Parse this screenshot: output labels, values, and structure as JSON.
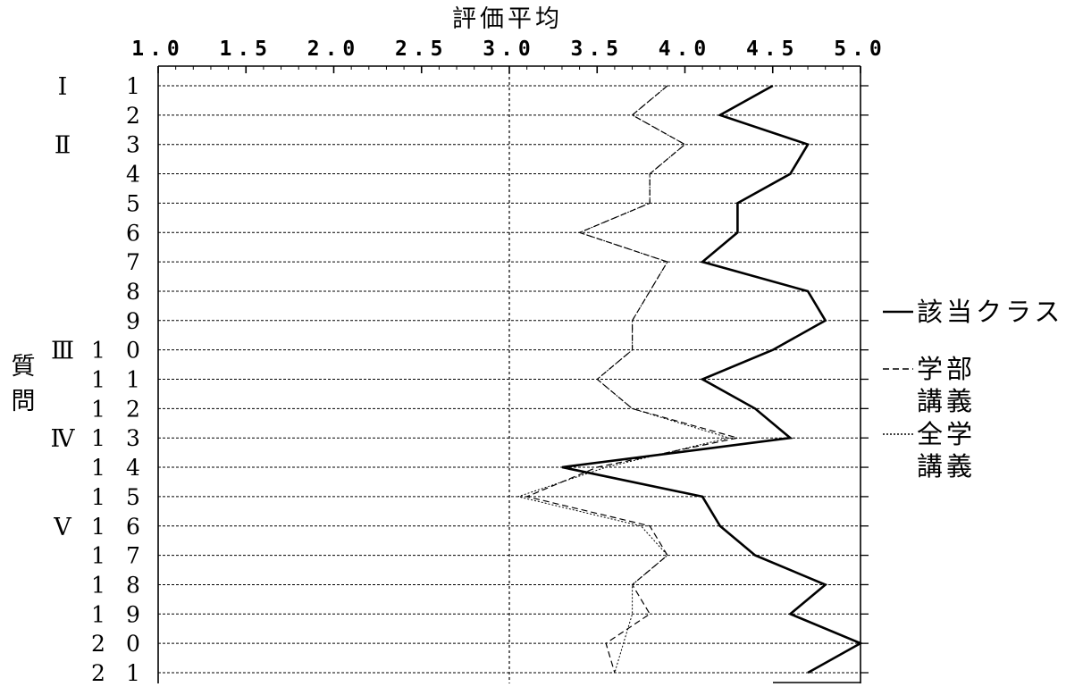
{
  "chart_data": {
    "type": "line",
    "orientation": "horizontal",
    "title": "評価平均",
    "ylabel": "質問",
    "xlim": [
      1.0,
      5.0
    ],
    "xticks": [
      "1.0",
      "1.5",
      "2.0",
      "2.5",
      "3.0",
      "3.5",
      "4.0",
      "4.5",
      "5.0"
    ],
    "reference_line": 3.0,
    "grid": true,
    "legend_position": "right",
    "categories": [
      "1",
      "2",
      "3",
      "4",
      "5",
      "6",
      "7",
      "8",
      "9",
      "10",
      "11",
      "12",
      "13",
      "14",
      "15",
      "16",
      "17",
      "18",
      "19",
      "20",
      "21"
    ],
    "category_labels": [
      {
        "d1": "",
        "d2": "1"
      },
      {
        "d1": "",
        "d2": "2"
      },
      {
        "d1": "",
        "d2": "3"
      },
      {
        "d1": "",
        "d2": "4"
      },
      {
        "d1": "",
        "d2": "5"
      },
      {
        "d1": "",
        "d2": "6"
      },
      {
        "d1": "",
        "d2": "7"
      },
      {
        "d1": "",
        "d2": "8"
      },
      {
        "d1": "",
        "d2": "9"
      },
      {
        "d1": "1",
        "d2": "0"
      },
      {
        "d1": "1",
        "d2": "1"
      },
      {
        "d1": "1",
        "d2": "2"
      },
      {
        "d1": "1",
        "d2": "3"
      },
      {
        "d1": "1",
        "d2": "4"
      },
      {
        "d1": "1",
        "d2": "5"
      },
      {
        "d1": "1",
        "d2": "6"
      },
      {
        "d1": "1",
        "d2": "7"
      },
      {
        "d1": "1",
        "d2": "8"
      },
      {
        "d1": "1",
        "d2": "9"
      },
      {
        "d1": "2",
        "d2": "0"
      },
      {
        "d1": "2",
        "d2": "1"
      }
    ],
    "sections": [
      {
        "label": "Ⅰ",
        "start": 1
      },
      {
        "label": "Ⅱ",
        "start": 3
      },
      {
        "label": "Ⅲ",
        "start": 10
      },
      {
        "label": "Ⅳ",
        "start": 13
      },
      {
        "label": "Ⅴ",
        "start": 16
      }
    ],
    "series": [
      {
        "name": "該当クラス",
        "style": "solid",
        "values": [
          4.5,
          4.2,
          4.7,
          4.6,
          4.3,
          4.3,
          4.1,
          4.7,
          4.8,
          4.5,
          4.1,
          4.4,
          4.6,
          3.3,
          4.1,
          4.2,
          4.4,
          4.8,
          4.6,
          5.0,
          4.7
        ]
      },
      {
        "name": "学部講義",
        "style": "dashed",
        "values": [
          3.9,
          3.7,
          4.0,
          3.8,
          3.8,
          3.4,
          3.9,
          3.8,
          3.7,
          3.7,
          3.5,
          3.7,
          4.3,
          3.5,
          3.1,
          3.8,
          3.9,
          3.7,
          3.8,
          3.55,
          3.6
        ]
      },
      {
        "name": "全学講義",
        "style": "dotted",
        "values": [
          3.9,
          3.7,
          4.0,
          3.8,
          3.8,
          3.4,
          3.9,
          3.8,
          3.7,
          3.7,
          3.5,
          3.7,
          4.25,
          3.55,
          3.05,
          3.75,
          3.9,
          3.7,
          3.7,
          3.65,
          3.6
        ]
      }
    ],
    "legend": [
      {
        "style": "solid",
        "lines": [
          "該当クラス"
        ]
      },
      {
        "style": "dashed",
        "lines": [
          "学部",
          "講義"
        ]
      },
      {
        "style": "dotted",
        "lines": [
          "全学",
          "講義"
        ]
      }
    ]
  }
}
